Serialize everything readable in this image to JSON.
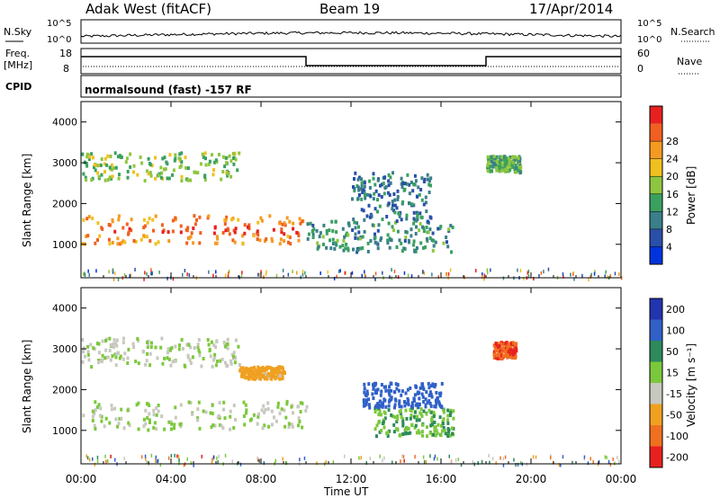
{
  "header": {
    "station": "Adak West (fitACF)",
    "beam": "Beam 19",
    "date": "17/Apr/2014"
  },
  "nsky_panel": {
    "left_label": "N.Sky",
    "right_label": "N.Search",
    "left_ticks": [
      "10^5",
      "10^0"
    ],
    "right_ticks": [
      "10^5",
      "10^0"
    ]
  },
  "freq_panel": {
    "left_label_line1": "Freq.",
    "left_label_line2": "[MHz]",
    "right_label": "Nave",
    "left_ticks": [
      "18",
      "8"
    ],
    "right_ticks": [
      "60",
      "0"
    ],
    "freq_segments": [
      {
        "x_start": "00:00",
        "x_end": "10:00",
        "freq_level": "high"
      },
      {
        "x_start": "10:00",
        "x_end": "18:00",
        "freq_level": "low"
      },
      {
        "x_start": "18:00",
        "x_end": "24:00",
        "freq_level": "high"
      }
    ]
  },
  "cpid_panel": {
    "left_label": "CPID",
    "program": "normalsound (fast) -157 RF"
  },
  "x_axis": {
    "label": "Time UT",
    "ticks": [
      "00:00",
      "04:00",
      "08:00",
      "12:00",
      "16:00",
      "20:00",
      "00:00"
    ]
  },
  "power_panel": {
    "ylabel": "Slant Range [km]",
    "yticks": [
      "1000",
      "2000",
      "3000",
      "4000"
    ],
    "colorbar_label": "Power [dB]",
    "colorbar_ticks": [
      "4",
      "8",
      "12",
      "16",
      "20",
      "24",
      "28"
    ],
    "colorbar_colors": [
      "#0033dd",
      "#2a4fa8",
      "#3a7f8a",
      "#3aa060",
      "#8ec63f",
      "#f0c020",
      "#f59a20",
      "#f06020",
      "#e82020"
    ]
  },
  "velocity_panel": {
    "ylabel": "Slant Range [km]",
    "yticks": [
      "1000",
      "2000",
      "3000",
      "4000"
    ],
    "colorbar_label": "Velocity [m s⁻¹]",
    "colorbar_ticks": [
      "200",
      "100",
      "50",
      "15",
      "-15",
      "-50",
      "-100",
      "-200"
    ],
    "colorbar_colors": [
      "#2234b0",
      "#3060c8",
      "#2d8a5a",
      "#7cc83c",
      "#c8c8c0",
      "#f0a020",
      "#f07020",
      "#e82020"
    ]
  },
  "chart_data": {
    "type": "heatmap",
    "title": "Adak West (fitACF) Beam 19 17/Apr/2014",
    "xlabel": "Time UT",
    "ylabel": "Slant Range [km]",
    "x_range": [
      "00:00",
      "24:00"
    ],
    "ylim": [
      180,
      4500
    ],
    "series": [
      {
        "name": "Power [dB]",
        "zlim": [
          0,
          30
        ],
        "regions": [
          {
            "t0": 0.0,
            "t1": 10.0,
            "r0": 1050,
            "r1": 1750,
            "value": 22,
            "core_value": 28
          },
          {
            "t0": 0.0,
            "t1": 7.0,
            "r0": 2600,
            "r1": 3300,
            "value": 14
          },
          {
            "t0": 10.0,
            "t1": 16.5,
            "r0": 850,
            "r1": 1600,
            "value": 10
          },
          {
            "t0": 12.0,
            "t1": 15.5,
            "r0": 1600,
            "r1": 2800,
            "value": 8
          },
          {
            "t0": 18.0,
            "t1": 19.5,
            "r0": 2800,
            "r1": 3200,
            "value": 12
          }
        ]
      },
      {
        "name": "Velocity [m s⁻¹]",
        "zlim": [
          -250,
          250
        ],
        "regions": [
          {
            "t0": 0.0,
            "t1": 10.0,
            "r0": 1050,
            "r1": 1750,
            "value": 0
          },
          {
            "t0": 0.0,
            "t1": 7.0,
            "r0": 2600,
            "r1": 3300,
            "value": 0
          },
          {
            "t0": 7.0,
            "t1": 9.0,
            "r0": 2300,
            "r1": 2600,
            "value": -80
          },
          {
            "t0": 13.0,
            "t1": 16.5,
            "r0": 900,
            "r1": 1600,
            "value": 60
          },
          {
            "t0": 12.5,
            "t1": 16.0,
            "r0": 1600,
            "r1": 2200,
            "value": 150
          },
          {
            "t0": 18.3,
            "t1": 19.3,
            "r0": 2800,
            "r1": 3200,
            "value": -180
          }
        ]
      }
    ],
    "grid": false
  }
}
